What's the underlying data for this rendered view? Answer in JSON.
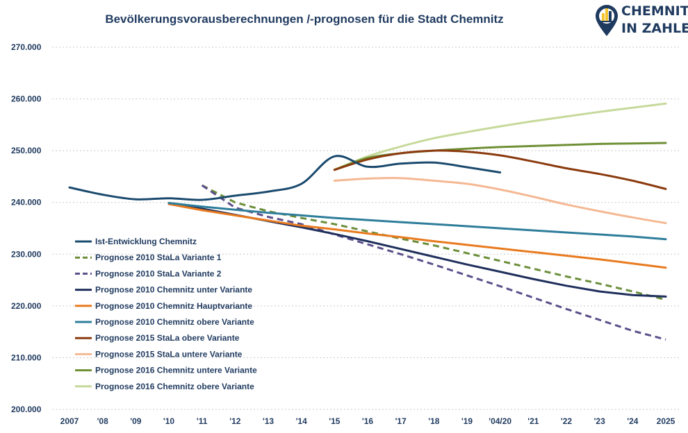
{
  "logo": {
    "line1": "CHEMNITZ",
    "line2": "IN ZAHLEN",
    "icon": "location-pin-city-icon"
  },
  "chart_data": {
    "type": "line",
    "title": "Bevölkerungsvorausberechnungen /-prognosen für die Stadt Chemnitz",
    "xlabel": "",
    "ylabel": "",
    "x": [
      2007,
      2008,
      2009,
      2010,
      2011,
      2012,
      2013,
      2014,
      2015,
      2016,
      2017,
      2018,
      2019,
      2020,
      2021,
      2022,
      2023,
      2024,
      2025
    ],
    "x_tick_labels": [
      "2007",
      "'08",
      "'09",
      "'10",
      "'11",
      "'12",
      "'13",
      "'14",
      "'15",
      "'16",
      "'17",
      "'18",
      "'19",
      "'04/20",
      "'21",
      "'22",
      "'23",
      "'24",
      "2025"
    ],
    "ylim": [
      200000,
      270000
    ],
    "y_ticks": [
      200000,
      210000,
      220000,
      230000,
      240000,
      250000,
      260000,
      270000
    ],
    "y_tick_labels": [
      "200.000",
      "210.000",
      "220.000",
      "230.000",
      "240.000",
      "250.000",
      "260.000",
      "270.000"
    ],
    "grid": "horizontal-dotted",
    "legend_position": "bottom-left",
    "series": [
      {
        "name": "Ist-Entwicklung Chemnitz",
        "color": "#1a4a6e",
        "dash": "solid",
        "smooth": true,
        "points": [
          [
            2007,
            242900
          ],
          [
            2008,
            241500
          ],
          [
            2009,
            240600
          ],
          [
            2010,
            240800
          ],
          [
            2011,
            240500
          ],
          [
            2012,
            241300
          ],
          [
            2013,
            242100
          ],
          [
            2014,
            243600
          ],
          [
            2015,
            248900
          ],
          [
            2016,
            246900
          ],
          [
            2017,
            247500
          ],
          [
            2018,
            247700
          ],
          [
            2019,
            246800
          ],
          [
            2020,
            245800
          ]
        ]
      },
      {
        "name": "Prognose 2010 StaLa Variante 1",
        "color": "#6b8e3a",
        "dash": "dashed",
        "smooth": false,
        "points": [
          [
            2011,
            243300
          ],
          [
            2012,
            240000
          ],
          [
            2013,
            238300
          ],
          [
            2014,
            237000
          ],
          [
            2015,
            235800
          ],
          [
            2016,
            234400
          ],
          [
            2017,
            233000
          ],
          [
            2018,
            231700
          ],
          [
            2019,
            230200
          ],
          [
            2020,
            228700
          ],
          [
            2021,
            227200
          ],
          [
            2022,
            225700
          ],
          [
            2023,
            224300
          ],
          [
            2024,
            222800
          ],
          [
            2025,
            221200
          ]
        ]
      },
      {
        "name": "Prognose 2010 StaLa Variante 2",
        "color": "#5b4e8a",
        "dash": "dashed",
        "smooth": false,
        "points": [
          [
            2011,
            243300
          ],
          [
            2012,
            239000
          ],
          [
            2013,
            237200
          ],
          [
            2014,
            235800
          ],
          [
            2015,
            233800
          ],
          [
            2016,
            231900
          ],
          [
            2017,
            230000
          ],
          [
            2018,
            228000
          ],
          [
            2019,
            225900
          ],
          [
            2020,
            223800
          ],
          [
            2021,
            221600
          ],
          [
            2022,
            219400
          ],
          [
            2023,
            217300
          ],
          [
            2024,
            215200
          ],
          [
            2025,
            213500
          ]
        ]
      },
      {
        "name": "Prognose 2010 Chemnitz unter Variante",
        "color": "#1f2f5c",
        "dash": "solid",
        "smooth": false,
        "points": [
          [
            2010,
            239700
          ],
          [
            2011,
            238800
          ],
          [
            2012,
            237600
          ],
          [
            2013,
            236400
          ],
          [
            2014,
            235200
          ],
          [
            2015,
            233900
          ],
          [
            2016,
            232500
          ],
          [
            2017,
            231000
          ],
          [
            2018,
            229500
          ],
          [
            2019,
            228000
          ],
          [
            2020,
            226600
          ],
          [
            2021,
            225200
          ],
          [
            2022,
            223900
          ],
          [
            2023,
            222800
          ],
          [
            2024,
            222100
          ],
          [
            2025,
            221800
          ]
        ]
      },
      {
        "name": "Prognose 2010 Chemnitz Hauptvariante",
        "color": "#e87a1e",
        "dash": "solid",
        "smooth": false,
        "points": [
          [
            2010,
            239700
          ],
          [
            2011,
            238500
          ],
          [
            2012,
            237500
          ],
          [
            2013,
            236500
          ],
          [
            2014,
            235500
          ],
          [
            2015,
            234800
          ],
          [
            2016,
            234000
          ],
          [
            2017,
            233300
          ],
          [
            2018,
            232500
          ],
          [
            2019,
            231800
          ],
          [
            2020,
            231100
          ],
          [
            2021,
            230400
          ],
          [
            2022,
            229700
          ],
          [
            2023,
            229000
          ],
          [
            2024,
            228200
          ],
          [
            2025,
            227400
          ]
        ]
      },
      {
        "name": "Prognose 2010 Chemnitz obere Variante",
        "color": "#2e7d9a",
        "dash": "solid",
        "smooth": false,
        "points": [
          [
            2010,
            239900
          ],
          [
            2011,
            239200
          ],
          [
            2012,
            238600
          ],
          [
            2013,
            238000
          ],
          [
            2014,
            237500
          ],
          [
            2015,
            237000
          ],
          [
            2016,
            236600
          ],
          [
            2017,
            236200
          ],
          [
            2018,
            235800
          ],
          [
            2019,
            235400
          ],
          [
            2020,
            235000
          ],
          [
            2021,
            234600
          ],
          [
            2022,
            234200
          ],
          [
            2023,
            233800
          ],
          [
            2024,
            233400
          ],
          [
            2025,
            232900
          ]
        ]
      },
      {
        "name": "Prognose 2015 StaLa obere Variante",
        "color": "#8b3a0e",
        "dash": "solid",
        "smooth": true,
        "points": [
          [
            2015,
            246300
          ],
          [
            2016,
            248300
          ],
          [
            2017,
            249500
          ],
          [
            2018,
            250000
          ],
          [
            2019,
            249800
          ],
          [
            2020,
            249100
          ],
          [
            2021,
            247900
          ],
          [
            2022,
            246600
          ],
          [
            2023,
            245500
          ],
          [
            2024,
            244200
          ],
          [
            2025,
            242600
          ]
        ]
      },
      {
        "name": "Prognose 2015 StaLa untere Variante",
        "color": "#f4b893",
        "dash": "solid",
        "smooth": true,
        "points": [
          [
            2015,
            244200
          ],
          [
            2016,
            244600
          ],
          [
            2017,
            244700
          ],
          [
            2018,
            244200
          ],
          [
            2019,
            243600
          ],
          [
            2020,
            242500
          ],
          [
            2021,
            241100
          ],
          [
            2022,
            239600
          ],
          [
            2023,
            238300
          ],
          [
            2024,
            237100
          ],
          [
            2025,
            236000
          ]
        ]
      },
      {
        "name": "Prognose 2016 Chemnitz untere Variante",
        "color": "#6f8f35",
        "dash": "solid",
        "smooth": true,
        "points": [
          [
            2015,
            246300
          ],
          [
            2016,
            248600
          ],
          [
            2017,
            249500
          ],
          [
            2018,
            250000
          ],
          [
            2019,
            250400
          ],
          [
            2020,
            250700
          ],
          [
            2021,
            250900
          ],
          [
            2022,
            251100
          ],
          [
            2023,
            251300
          ],
          [
            2024,
            251400
          ],
          [
            2025,
            251500
          ]
        ]
      },
      {
        "name": "Prognose 2016 Chemnitz obere Variante",
        "color": "#c6d99a",
        "dash": "solid",
        "smooth": true,
        "points": [
          [
            2015,
            246300
          ],
          [
            2016,
            248900
          ],
          [
            2017,
            250800
          ],
          [
            2018,
            252400
          ],
          [
            2019,
            253600
          ],
          [
            2020,
            254700
          ],
          [
            2021,
            255700
          ],
          [
            2022,
            256600
          ],
          [
            2023,
            257500
          ],
          [
            2024,
            258300
          ],
          [
            2025,
            259100
          ]
        ]
      }
    ]
  }
}
